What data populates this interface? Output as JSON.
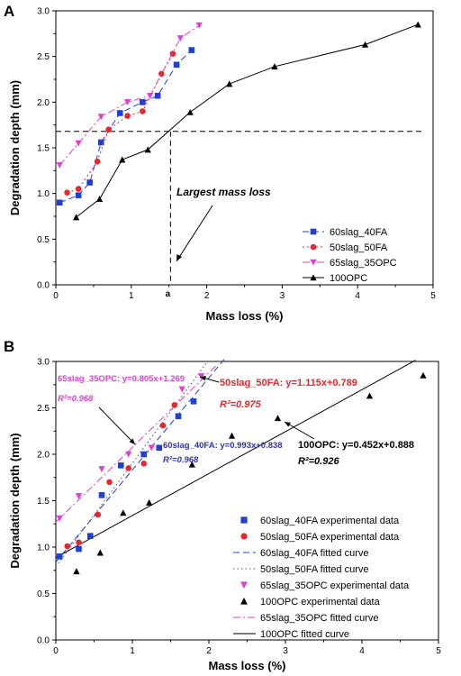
{
  "chart_data": [
    {
      "type": "line",
      "panel_label": "A",
      "xlabel": "Mass loss (%)",
      "ylabel": "Degradation depth (mm)",
      "xlim": [
        0,
        5
      ],
      "ylim": [
        0,
        3.0
      ],
      "xticks": [
        "0",
        "1",
        "2",
        "3",
        "4",
        "5"
      ],
      "yticks": [
        "0.0",
        "0.5",
        "1.0",
        "1.5",
        "2.0",
        "2.5",
        "3.0"
      ],
      "legend_position": "bottom-right",
      "series": [
        {
          "name": "60slag_40FA",
          "color": "#1f3fd6",
          "marker": "square",
          "dash": "7,4",
          "x": [
            0.05,
            0.3,
            0.45,
            0.6,
            0.85,
            1.15,
            1.35,
            1.6,
            1.8
          ],
          "y": [
            0.9,
            0.98,
            1.12,
            1.56,
            1.88,
            2.0,
            2.07,
            2.41,
            2.57
          ]
        },
        {
          "name": "50slag_50FA",
          "color": "#e8262e",
          "marker": "circle",
          "dash": "2,3",
          "x": [
            0.15,
            0.3,
            0.55,
            0.7,
            0.95,
            1.15,
            1.4,
            1.55
          ],
          "y": [
            1.01,
            1.05,
            1.35,
            1.7,
            1.85,
            1.9,
            2.31,
            2.53
          ]
        },
        {
          "name": "65slag_35OPC",
          "color": "#e040d0",
          "marker": "triangle-down",
          "dash": "8,3,2,3",
          "x": [
            0.05,
            0.3,
            0.6,
            0.95,
            1.25,
            1.65,
            1.9
          ],
          "y": [
            1.31,
            1.55,
            1.84,
            2.0,
            2.07,
            2.7,
            2.84
          ]
        },
        {
          "name": "100OPC",
          "color": "#000000",
          "marker": "triangle-up",
          "dash": "",
          "x": [
            0.27,
            0.58,
            0.88,
            1.22,
            1.78,
            2.3,
            2.9,
            4.1,
            4.8
          ],
          "y": [
            0.74,
            0.94,
            1.37,
            1.48,
            1.89,
            2.2,
            2.39,
            2.63,
            2.85
          ]
        }
      ],
      "annotations": {
        "largest_mass_loss_label": "Largest mass loss",
        "point_label": "a",
        "hline_y": 1.68,
        "vline_x": 1.52
      }
    },
    {
      "type": "scatter",
      "panel_label": "B",
      "xlabel": "Mass loss (%)",
      "ylabel": "Degradation depth (mm)",
      "xlim": [
        0,
        5
      ],
      "ylim": [
        0,
        3.0
      ],
      "xticks": [
        "0",
        "1",
        "2",
        "3",
        "4",
        "5"
      ],
      "yticks": [
        "0.0",
        "0.5",
        "1.0",
        "1.5",
        "2.0",
        "2.5",
        "3.0"
      ],
      "legend_position": "bottom-right",
      "series": [
        {
          "name": "60slag_40FA experimental data",
          "color": "#1f3fd6",
          "marker": "square",
          "x": [
            0.05,
            0.3,
            0.45,
            0.6,
            0.85,
            1.15,
            1.35,
            1.6,
            1.8
          ],
          "y": [
            0.9,
            0.98,
            1.12,
            1.56,
            1.88,
            2.0,
            2.07,
            2.41,
            2.57
          ]
        },
        {
          "name": "50slag_50FA experimental data",
          "color": "#e8262e",
          "marker": "circle",
          "x": [
            0.15,
            0.3,
            0.55,
            0.7,
            0.95,
            1.15,
            1.4,
            1.55
          ],
          "y": [
            1.01,
            1.05,
            1.35,
            1.7,
            1.85,
            1.9,
            2.31,
            2.53
          ]
        },
        {
          "name": "65slag_35OPC experimental data",
          "color": "#e040d0",
          "marker": "triangle-down",
          "x": [
            0.05,
            0.3,
            0.6,
            0.95,
            1.25,
            1.65,
            1.9
          ],
          "y": [
            1.31,
            1.55,
            1.84,
            2.0,
            2.07,
            2.7,
            2.84
          ]
        },
        {
          "name": "100OPC experimental data",
          "color": "#000000",
          "marker": "triangle-up",
          "x": [
            0.27,
            0.58,
            0.88,
            1.22,
            1.78,
            2.3,
            2.9,
            4.1,
            4.8
          ],
          "y": [
            0.74,
            0.94,
            1.37,
            1.48,
            1.89,
            2.2,
            2.39,
            2.63,
            2.85
          ]
        }
      ],
      "fits": [
        {
          "name": "60slag_40FA fitted curve",
          "color": "#1f3fd6",
          "dash": "7,4",
          "slope": 0.993,
          "intercept": 0.838,
          "x_range": [
            0,
            2.2
          ],
          "equation": "60slag_40FA: y=0.993x+0.838",
          "r2": "R²=0.968"
        },
        {
          "name": "50slag_50FA fitted curve",
          "color": "#4a4aa0",
          "dash": "1.5,3",
          "slope": 1.115,
          "intercept": 0.789,
          "x_range": [
            0,
            1.98
          ],
          "equation": "50slag_50FA: y=1.115x+0.789",
          "r2": "R²=0.975"
        },
        {
          "name": "65slag_35OPC fitted curve",
          "color": "#e040d0",
          "dash": "8,3,2,3",
          "slope": 0.805,
          "intercept": 1.269,
          "x_range": [
            0,
            2.1
          ],
          "equation": "65slag_35OPC: y=0.805x+1.269",
          "r2": "R²=0.968"
        },
        {
          "name": "100OPC fitted curve",
          "color": "#000000",
          "dash": "",
          "slope": 0.452,
          "intercept": 0.888,
          "x_range": [
            0,
            4.7
          ],
          "equation": "100OPC: y=0.452x+0.888",
          "r2": "R²=0.926"
        }
      ]
    }
  ]
}
